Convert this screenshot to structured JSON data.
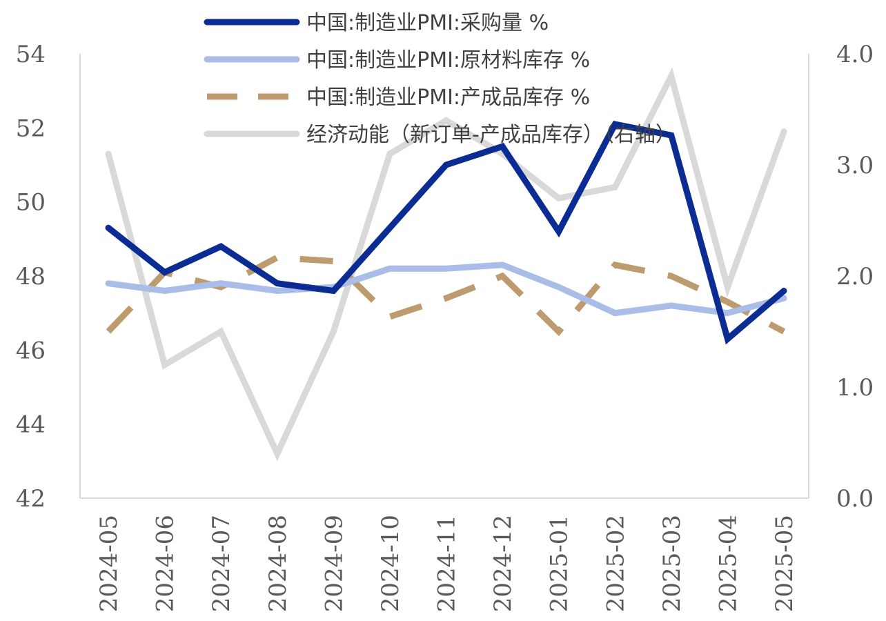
{
  "chart_data": {
    "type": "line",
    "categories": [
      "2024-05",
      "2024-06",
      "2024-07",
      "2024-08",
      "2024-09",
      "2024-10",
      "2024-11",
      "2024-12",
      "2025-01",
      "2025-02",
      "2025-03",
      "2025-04",
      "2025-05"
    ],
    "series": [
      {
        "name": "中国:制造业PMI:采购量 %",
        "axis": "left",
        "color": "#0A2C93",
        "dash": "solid",
        "values": [
          49.3,
          48.1,
          48.8,
          47.8,
          47.6,
          49.3,
          51.0,
          51.5,
          49.2,
          52.1,
          51.8,
          46.3,
          47.6
        ]
      },
      {
        "name": "中国:制造业PMI:原材料库存 %",
        "axis": "left",
        "color": "#A9BDE8",
        "dash": "solid",
        "values": [
          47.8,
          47.6,
          47.8,
          47.6,
          47.7,
          48.2,
          48.2,
          48.3,
          47.7,
          47.0,
          47.2,
          47.0,
          47.4
        ]
      },
      {
        "name": "中国:制造业PMI:产成品库存 %",
        "axis": "left",
        "color": "#BD9B6E",
        "dash": "dashed",
        "values": [
          46.5,
          48.1,
          47.7,
          48.5,
          48.4,
          46.9,
          47.4,
          48.0,
          46.5,
          48.3,
          48.0,
          47.3,
          46.5
        ]
      },
      {
        "name": "经济动能（新订单-产成品库存）（右轴）",
        "axis": "right",
        "color": "#D9D9D9",
        "dash": "solid",
        "values": [
          3.1,
          1.2,
          1.5,
          0.4,
          1.5,
          3.1,
          3.4,
          3.1,
          2.7,
          2.8,
          3.8,
          1.9,
          3.3
        ]
      }
    ],
    "left_axis": {
      "min": 42,
      "max": 54,
      "ticks": [
        42,
        44,
        46,
        48,
        50,
        52,
        54
      ]
    },
    "right_axis": {
      "min": 0,
      "max": 4,
      "ticks": [
        "0.0",
        "1.0",
        "2.0",
        "3.0",
        "4.0"
      ]
    },
    "legend_position": "top",
    "grid": false
  }
}
